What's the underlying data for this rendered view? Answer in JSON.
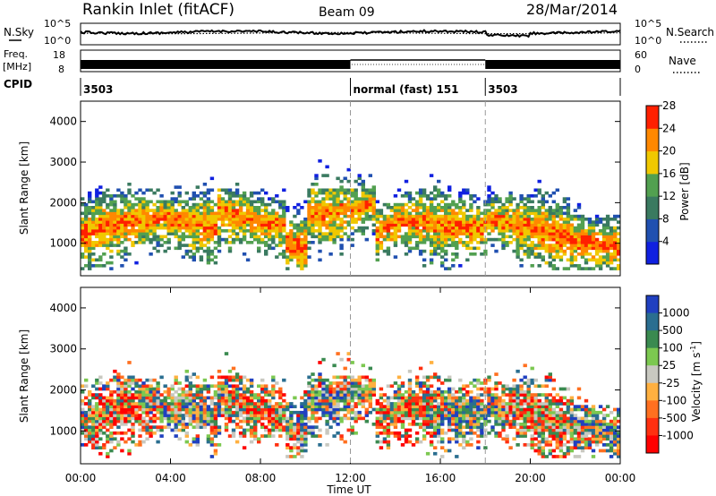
{
  "header": {
    "title": "Rankin Inlet (fitACF)",
    "beam": "Beam 09",
    "date": "28/Mar/2014"
  },
  "chart_data": [
    {
      "type": "line",
      "panel": "noise",
      "left_label": "N.Sky",
      "right_label": "N.Search",
      "left_ticks": [
        "10^5",
        "10^0"
      ],
      "right_ticks": [
        "10^5",
        "10^0"
      ],
      "series": [
        {
          "name": "N.Sky",
          "style": "solid"
        },
        {
          "name": "N.Search",
          "style": "dotted"
        }
      ]
    },
    {
      "type": "line",
      "panel": "freq",
      "left_label_line1": "Freq.",
      "left_label_line2": "[MHz]",
      "left_ticks": [
        "18",
        "8"
      ],
      "right_label": "Nave",
      "right_ticks": [
        "60",
        "0"
      ],
      "segments": [
        {
          "x_start": 0,
          "x_end": 12,
          "state": "filled"
        },
        {
          "x_start": 12,
          "x_end": 18,
          "state": "empty"
        },
        {
          "x_start": 18,
          "x_end": 24,
          "state": "filled"
        }
      ]
    },
    {
      "type": "table",
      "panel": "cpid",
      "label": "CPID",
      "segments": [
        {
          "x_start": 0,
          "x_end": 12,
          "text": "3503"
        },
        {
          "x_start": 12,
          "x_end": 18,
          "text": "normal (fast) 151"
        },
        {
          "x_start": 18,
          "x_end": 24,
          "text": "3503"
        }
      ]
    },
    {
      "type": "heatmap",
      "panel": "power",
      "ylabel": "Slant Range [km]",
      "ylim": [
        200,
        4500
      ],
      "yticks": [
        1000,
        2000,
        3000,
        4000
      ],
      "xlim": [
        0,
        24
      ],
      "colorbar_label": "Power [dB]",
      "colorbar_ticks": [
        "4",
        "8",
        "12",
        "16",
        "20",
        "24",
        "28"
      ],
      "colors": [
        "#1020e0",
        "#2050b0",
        "#3a7a60",
        "#52a050",
        "#f0c800",
        "#ff8800",
        "#ff2000"
      ]
    },
    {
      "type": "heatmap",
      "panel": "velocity",
      "ylabel": "Slant Range [km]",
      "ylim": [
        200,
        4500
      ],
      "yticks": [
        1000,
        2000,
        3000,
        4000
      ],
      "xlim": [
        0,
        24
      ],
      "xlabel": "Time UT",
      "xticks": [
        "00:00",
        "04:00",
        "08:00",
        "12:00",
        "16:00",
        "20:00",
        "00:00"
      ],
      "colorbar_label": "Velocity [m s",
      "colorbar_label_sup": "-1",
      "colorbar_label_end": "]",
      "colorbar_ticks": [
        "1000",
        "500",
        "100",
        "25",
        "-25",
        "-100",
        "-500",
        "-1000"
      ],
      "colors": [
        "#2040c0",
        "#2a6e90",
        "#3a8a50",
        "#7cc850",
        "#c8c8c0",
        "#ffb040",
        "#ff7020",
        "#ff3010",
        "#ff0000"
      ]
    }
  ]
}
